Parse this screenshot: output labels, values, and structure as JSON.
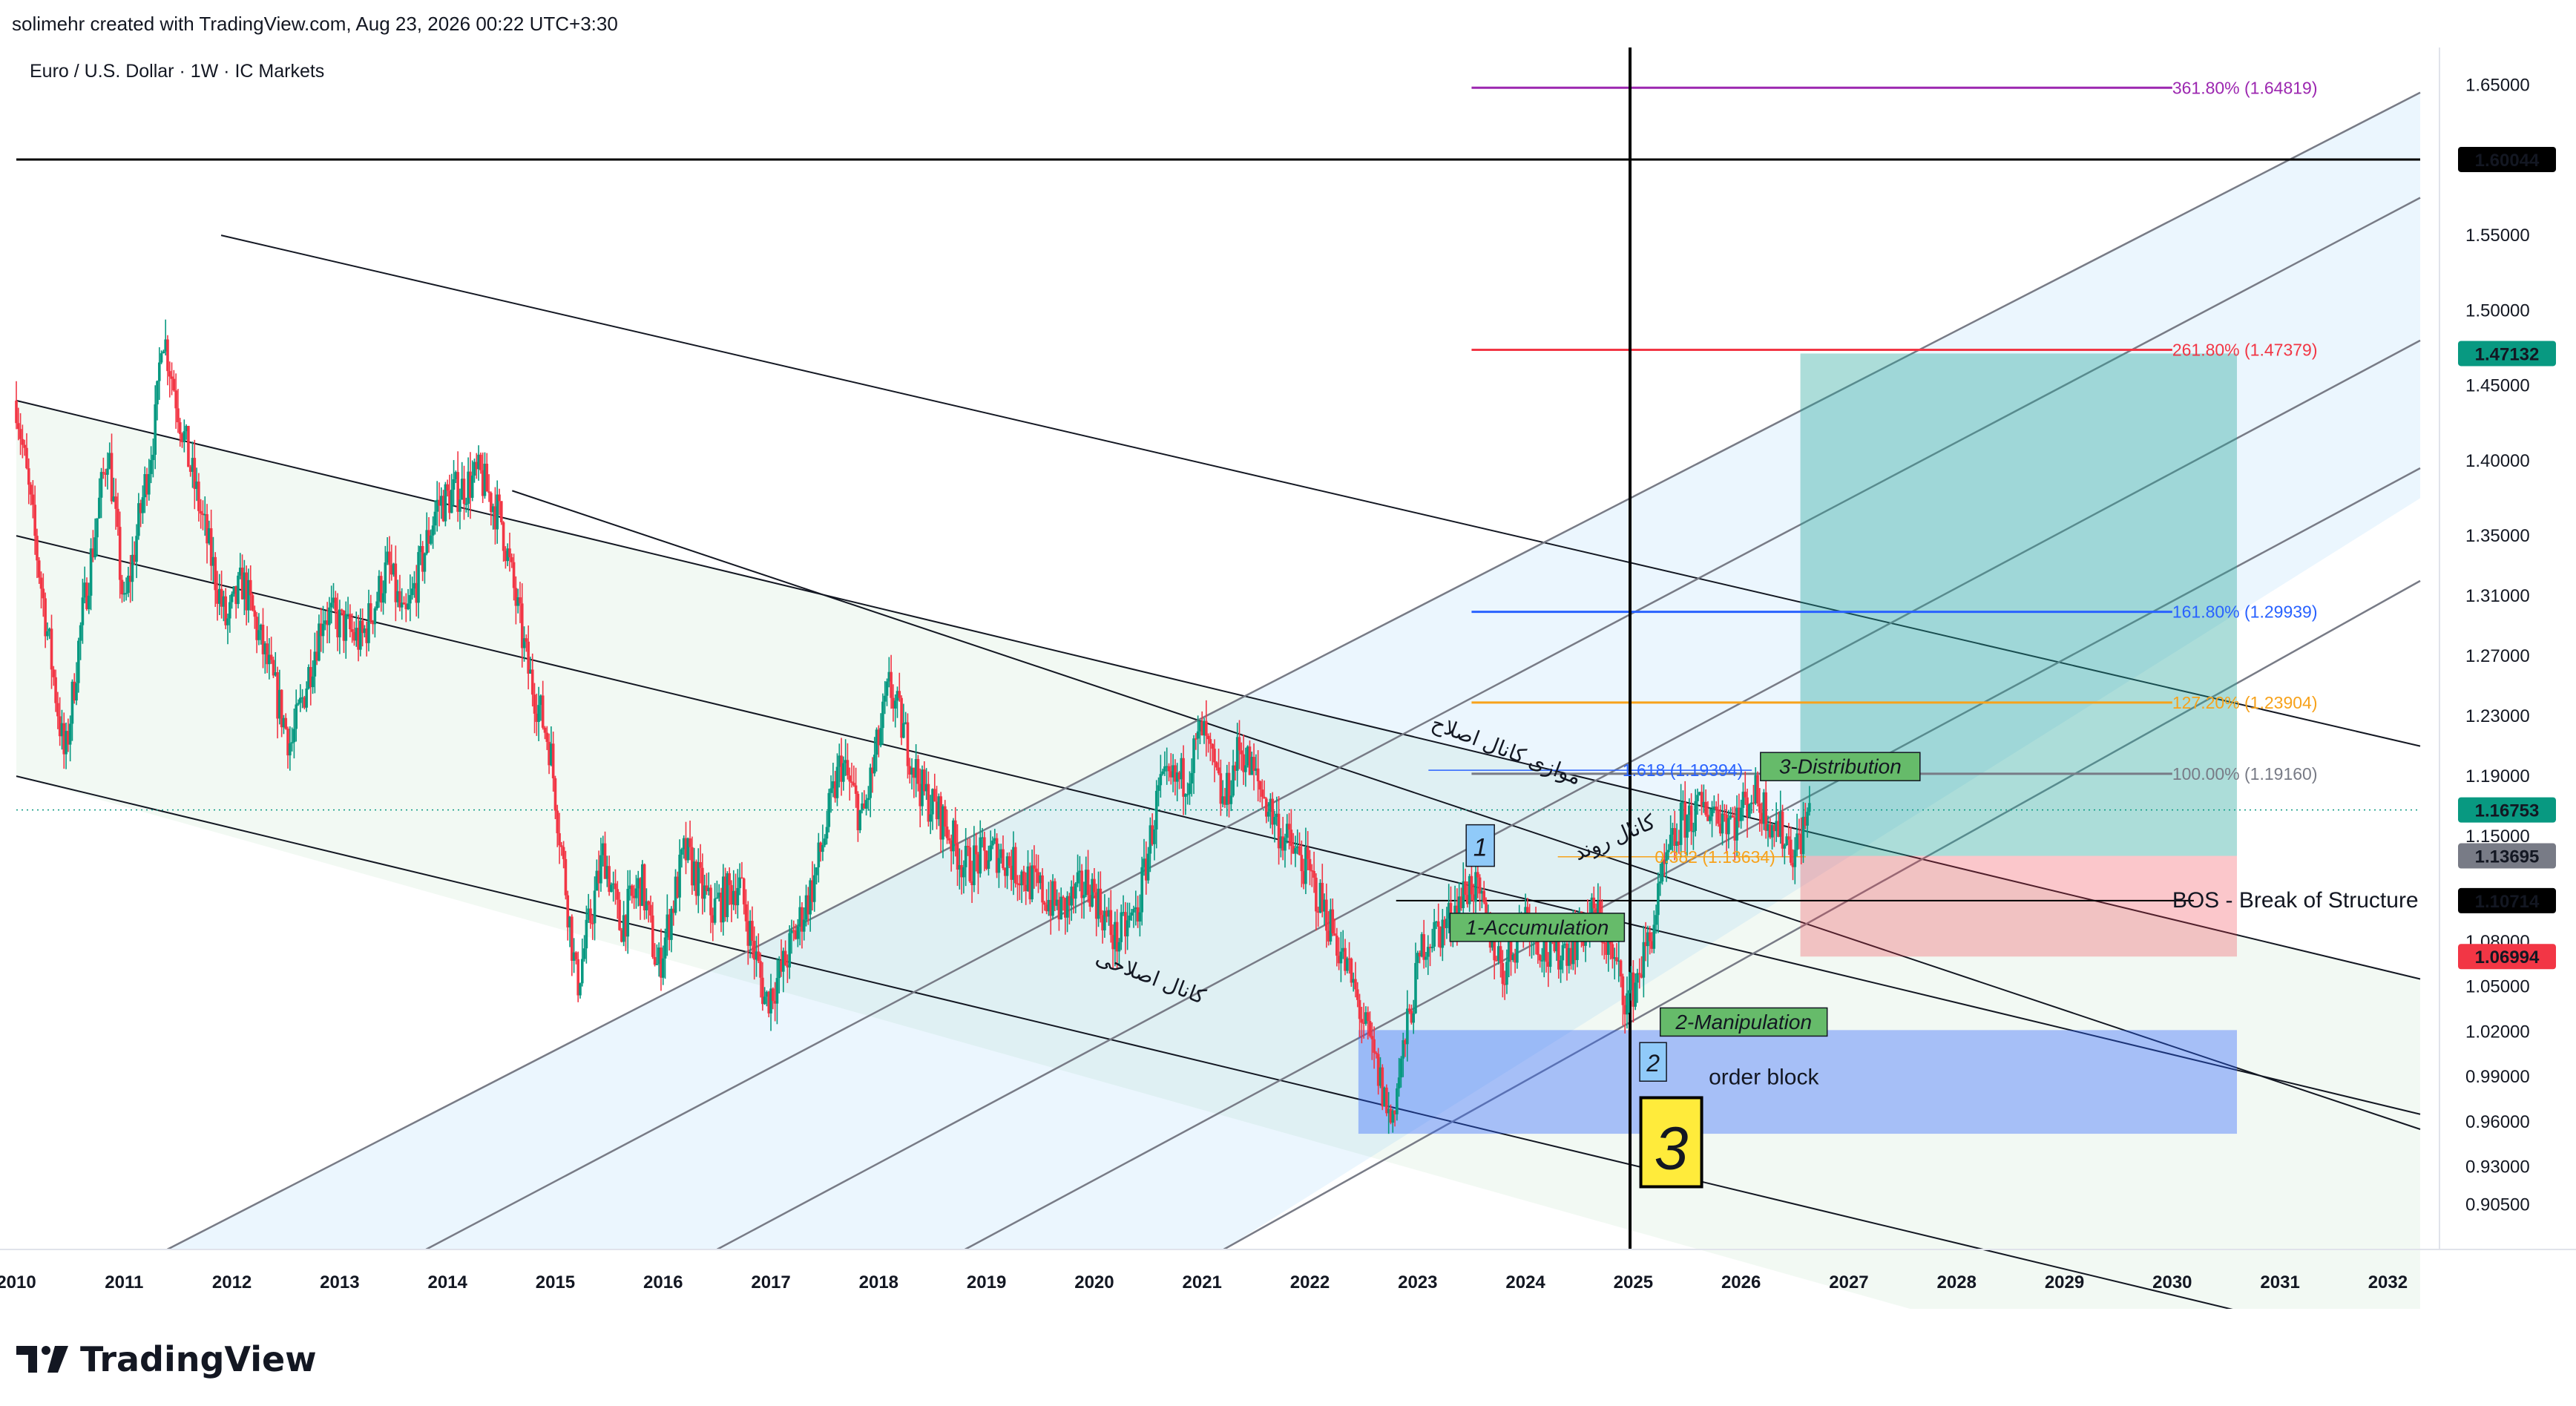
{
  "header": {
    "attribution": "solimehr created with TradingView.com, Aug 23, 2026 00:22 UTC+3:30"
  },
  "footer": {
    "brand": "TradingView"
  },
  "chart_data": {
    "type": "candlestick",
    "title": "Euro / U.S. Dollar · 1W · IC Markets",
    "x_range": [
      2010.0,
      2032.3
    ],
    "y_range": [
      0.875,
      1.675
    ],
    "x_ticks": [
      2010,
      2011,
      2012,
      2013,
      2014,
      2015,
      2016,
      2017,
      2018,
      2019,
      2020,
      2021,
      2022,
      2023,
      2024,
      2025,
      2026,
      2027,
      2028,
      2029,
      2030,
      2031,
      2032
    ],
    "y_ticks": [
      "1.65000",
      "1.55000",
      "1.50000",
      "1.45000",
      "1.40000",
      "1.35000",
      "1.31000",
      "1.27000",
      "1.23000",
      "1.19000",
      "1.15000",
      "1.08000",
      "1.05000",
      "1.02000",
      "0.99000",
      "0.96000",
      "0.93000",
      "0.90500"
    ],
    "price_path": [
      [
        2010.0,
        1.44
      ],
      [
        2010.15,
        1.36
      ],
      [
        2010.45,
        1.2
      ],
      [
        2010.6,
        1.29
      ],
      [
        2010.85,
        1.41
      ],
      [
        2011.0,
        1.3
      ],
      [
        2011.3,
        1.43
      ],
      [
        2011.35,
        1.49
      ],
      [
        2011.6,
        1.4
      ],
      [
        2011.95,
        1.29
      ],
      [
        2012.1,
        1.32
      ],
      [
        2012.55,
        1.21
      ],
      [
        2012.85,
        1.3
      ],
      [
        2013.2,
        1.28
      ],
      [
        2013.45,
        1.33
      ],
      [
        2013.6,
        1.29
      ],
      [
        2013.9,
        1.37
      ],
      [
        2014.3,
        1.39
      ],
      [
        2014.5,
        1.36
      ],
      [
        2014.75,
        1.26
      ],
      [
        2014.95,
        1.21
      ],
      [
        2015.2,
        1.05
      ],
      [
        2015.45,
        1.14
      ],
      [
        2015.6,
        1.09
      ],
      [
        2015.8,
        1.12
      ],
      [
        2015.95,
        1.06
      ],
      [
        2016.2,
        1.14
      ],
      [
        2016.45,
        1.1
      ],
      [
        2016.7,
        1.12
      ],
      [
        2016.95,
        1.04
      ],
      [
        2017.1,
        1.06
      ],
      [
        2017.4,
        1.12
      ],
      [
        2017.65,
        1.2
      ],
      [
        2017.85,
        1.16
      ],
      [
        2018.1,
        1.25
      ],
      [
        2018.4,
        1.18
      ],
      [
        2018.6,
        1.16
      ],
      [
        2018.8,
        1.13
      ],
      [
        2019.1,
        1.14
      ],
      [
        2019.4,
        1.12
      ],
      [
        2019.7,
        1.1
      ],
      [
        2019.95,
        1.12
      ],
      [
        2020.2,
        1.08
      ],
      [
        2020.4,
        1.1
      ],
      [
        2020.6,
        1.18
      ],
      [
        2020.85,
        1.19
      ],
      [
        2021.0,
        1.22
      ],
      [
        2021.2,
        1.17
      ],
      [
        2021.35,
        1.21
      ],
      [
        2021.55,
        1.18
      ],
      [
        2021.75,
        1.15
      ],
      [
        2021.95,
        1.13
      ],
      [
        2022.2,
        1.09
      ],
      [
        2022.4,
        1.05
      ],
      [
        2022.6,
        1.0
      ],
      [
        2022.75,
        0.96
      ],
      [
        2022.9,
        1.02
      ],
      [
        2023.05,
        1.08
      ],
      [
        2023.25,
        1.09
      ],
      [
        2023.5,
        1.12
      ],
      [
        2023.65,
        1.09
      ],
      [
        2023.8,
        1.06
      ],
      [
        2024.0,
        1.1
      ],
      [
        2024.2,
        1.07
      ],
      [
        2024.45,
        1.08
      ],
      [
        2024.65,
        1.1
      ],
      [
        2024.8,
        1.07
      ],
      [
        2024.95,
        1.04
      ],
      [
        2025.15,
        1.08
      ],
      [
        2025.3,
        1.13
      ],
      [
        2025.45,
        1.16
      ],
      [
        2025.7,
        1.17
      ],
      [
        2025.95,
        1.16
      ],
      [
        2026.1,
        1.18
      ],
      [
        2026.3,
        1.16
      ],
      [
        2026.5,
        1.14
      ],
      [
        2026.64,
        1.1675
      ]
    ],
    "last_price": 1.16753,
    "fibonacci_extension_levels": [
      {
        "label": "361.80% (1.64819)",
        "value": 1.64819,
        "color": "#9c27b0"
      },
      {
        "label": "261.80% (1.47379)",
        "value": 1.47379,
        "color": "#f23645"
      },
      {
        "label": "161.80% (1.29939)",
        "value": 1.29939,
        "color": "#2962ff"
      },
      {
        "label": "127.20% (1.23904)",
        "value": 1.23904,
        "color": "#f7a21b"
      },
      {
        "label": "100.00% (1.19160)",
        "value": 1.1916,
        "color": "#787b86"
      }
    ],
    "fibonacci_inner_levels": [
      {
        "label": "1.618 (1.19394)",
        "value": 1.19394,
        "color": "#2962ff"
      },
      {
        "label": "0.382 (1.13634)",
        "value": 1.13634,
        "color": "#f7a21b"
      }
    ],
    "horizontal_lines": [
      {
        "value": 1.60044,
        "label": "1.60044",
        "color": "#000000"
      },
      {
        "value": 1.10714,
        "label": "1.10714",
        "color": "#000000"
      }
    ],
    "price_tags": [
      {
        "value": 1.60044,
        "label": "1.60044",
        "color": "#000000"
      },
      {
        "value": 1.47132,
        "label": "1.47132",
        "color": "#089981"
      },
      {
        "value": 1.16753,
        "label": "1.16753",
        "color": "#089981"
      },
      {
        "value": 1.13695,
        "label": "1.13695",
        "color": "#787b86"
      },
      {
        "value": 1.10714,
        "label": "1.10714",
        "color": "#000000"
      },
      {
        "value": 1.06994,
        "label": "1.06994",
        "color": "#f23645"
      }
    ],
    "position_long": {
      "entry": 1.13695,
      "target": 1.47132,
      "stop": 1.06994,
      "x_start": 2026.55,
      "x_end": 2030.6
    },
    "order_block": {
      "label": "order block",
      "top": 1.021,
      "bottom": 0.952,
      "x_start": 2022.45,
      "x_end": 2030.6
    },
    "vertical_line": {
      "x": 2024.97
    },
    "annotations": [
      {
        "text": "BOS - Break of Structure"
      },
      {
        "text": "1-Accumulation"
      },
      {
        "text": "2-Manipulation"
      },
      {
        "text": "3-Distribution"
      },
      {
        "text": "1"
      },
      {
        "text": "2"
      },
      {
        "text": "3"
      },
      {
        "text": "کانال اصلاحی"
      },
      {
        "text": "موازی کانال اصلاح"
      },
      {
        "text": "کانال روند"
      }
    ]
  }
}
